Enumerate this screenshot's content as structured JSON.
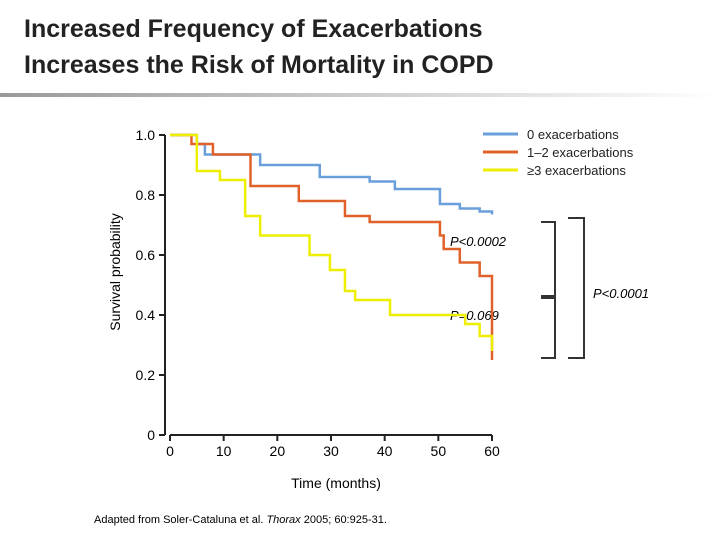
{
  "chart_data": {
    "type": "step",
    "title": [
      "Increased Frequency of Exacerbations",
      "Increases the Risk of Mortality in COPD"
    ],
    "x_label": "Time (months)",
    "y_label": "Survival probability",
    "xlim": [
      0,
      60
    ],
    "xticks": [
      0,
      10,
      20,
      30,
      40,
      50,
      60
    ],
    "ylim": [
      0,
      1
    ],
    "yticks": [
      0,
      0.2,
      0.4,
      0.6,
      0.8,
      {
        "value": 1,
        "label": "1.0"
      }
    ],
    "series": [
      {
        "name": "0 exacerbations",
        "color": "#6a9fdb",
        "x": [
          0,
          5,
          6.5,
          16.8,
          27.9,
          37.2,
          41.9,
          50.3,
          54,
          57.7,
          60
        ],
        "values": [
          1,
          0.97,
          0.935,
          0.9,
          0.86,
          0.845,
          0.82,
          0.77,
          0.755,
          0.745,
          0.735
        ]
      },
      {
        "name": "1–2 exacerbations",
        "color": "#e0622a",
        "x": [
          0,
          4,
          8,
          15,
          24,
          32.6,
          37.2,
          50.3,
          51,
          54,
          57.7,
          60
        ],
        "values": [
          1,
          0.97,
          0.935,
          0.83,
          0.78,
          0.73,
          0.71,
          0.665,
          0.62,
          0.575,
          0.53,
          0.25
        ]
      },
      {
        "name": "≥3 exacerbations",
        "color": "#eeee00",
        "x": [
          0,
          5,
          9.3,
          14,
          16.8,
          26,
          29.8,
          32.6,
          34.5,
          41,
          55,
          57.7,
          60
        ],
        "values": [
          1,
          0.88,
          0.85,
          0.73,
          0.665,
          0.6,
          0.55,
          0.48,
          0.45,
          0.4,
          0.37,
          0.33,
          0.28
        ]
      }
    ],
    "annotations": [
      "P<0.0002",
      "P<0.0001",
      "P=0.069"
    ],
    "source": [
      "Adapted from Soler-Cataluna et al. ",
      "Thorax",
      " 2005; 60:925-31."
    ]
  }
}
